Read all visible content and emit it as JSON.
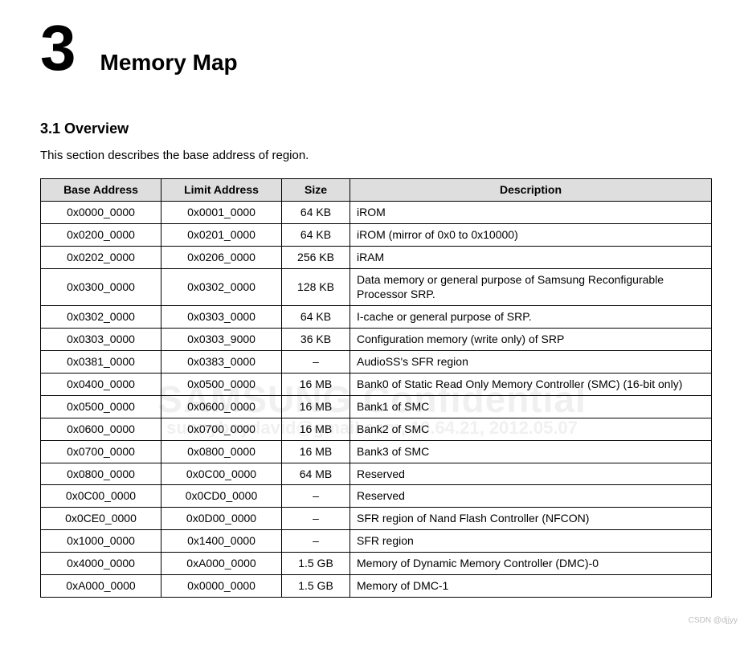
{
  "chapter": {
    "number": "3",
    "title": "Memory Map"
  },
  "section": {
    "heading": "3.1 Overview",
    "intro": "This section describes the base address of region."
  },
  "table": {
    "columns": [
      {
        "key": "base",
        "label": "Base Address",
        "class": "col-base"
      },
      {
        "key": "limit",
        "label": "Limit Address",
        "class": "col-limit"
      },
      {
        "key": "size",
        "label": "Size",
        "class": "col-size"
      },
      {
        "key": "desc",
        "label": "Description",
        "class": "col-desc"
      }
    ],
    "rows": [
      {
        "base": "0x0000_0000",
        "limit": "0x0001_0000",
        "size": "64 KB",
        "desc": "iROM"
      },
      {
        "base": "0x0200_0000",
        "limit": "0x0201_0000",
        "size": "64 KB",
        "desc": "iROM (mirror of 0x0 to 0x10000)"
      },
      {
        "base": "0x0202_0000",
        "limit": "0x0206_0000",
        "size": "256 KB",
        "desc": "iRAM"
      },
      {
        "base": "0x0300_0000",
        "limit": "0x0302_0000",
        "size": "128 KB",
        "desc": "Data memory or general purpose of Samsung Reconfigurable Processor SRP."
      },
      {
        "base": "0x0302_0000",
        "limit": "0x0303_0000",
        "size": "64 KB",
        "desc": "I-cache or general purpose of SRP."
      },
      {
        "base": "0x0303_0000",
        "limit": "0x0303_9000",
        "size": "36 KB",
        "desc": "Configuration memory (write only) of SRP"
      },
      {
        "base": "0x0381_0000",
        "limit": "0x0383_0000",
        "size": "–",
        "desc": "AudioSS's SFR region"
      },
      {
        "base": "0x0400_0000",
        "limit": "0x0500_0000",
        "size": "16 MB",
        "desc": "Bank0 of Static Read Only Memory Controller (SMC) (16-bit only)"
      },
      {
        "base": "0x0500_0000",
        "limit": "0x0600_0000",
        "size": "16 MB",
        "desc": "Bank1 of SMC"
      },
      {
        "base": "0x0600_0000",
        "limit": "0x0700_0000",
        "size": "16 MB",
        "desc": "Bank2 of SMC"
      },
      {
        "base": "0x0700_0000",
        "limit": "0x0800_0000",
        "size": "16 MB",
        "desc": "Bank3 of SMC"
      },
      {
        "base": "0x0800_0000",
        "limit": "0x0C00_0000",
        "size": "64 MB",
        "desc": "Reserved"
      },
      {
        "base": "0x0C00_0000",
        "limit": "0x0CD0_0000",
        "size": "–",
        "desc": "Reserved"
      },
      {
        "base": "0x0CE0_0000",
        "limit": "0x0D00_0000",
        "size": "–",
        "desc": "SFR region of Nand Flash Controller (NFCON)"
      },
      {
        "base": "0x1000_0000",
        "limit": "0x1400_0000",
        "size": "–",
        "desc": "SFR region"
      },
      {
        "base": "0x4000_0000",
        "limit": "0xA000_0000",
        "size": "1.5 GB",
        "desc": "Memory of Dynamic Memory Controller (DMC)-0"
      },
      {
        "base": "0xA000_0000",
        "limit": "0x0000_0000",
        "size": "1.5 GB",
        "desc": "Memory of DMC-1"
      }
    ]
  },
  "watermark": {
    "line1": "SAMSUNG Confidential",
    "line2": "sunnyboydavid@gmail.com, 10.64.21, 2012.05.07"
  },
  "footer_credit": "CSDN @djjyy",
  "colors": {
    "header_bg": "#dedede",
    "border": "#000000",
    "text": "#000000",
    "watermark": "#f0f0f0",
    "footer_credit": "#bdbdbd",
    "background": "#ffffff"
  }
}
